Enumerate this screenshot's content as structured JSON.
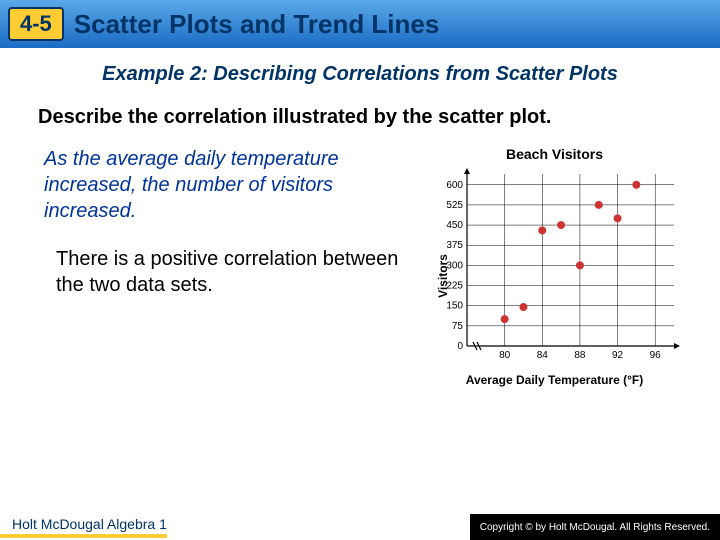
{
  "header": {
    "section": "4-5",
    "title": "Scatter Plots and Trend Lines"
  },
  "example": {
    "title": "Example 2: Describing Correlations from Scatter Plots",
    "instruction": "Describe the correlation illustrated by the scatter plot.",
    "answer": "As the average daily temperature increased, the number of visitors increased.",
    "conclusion": "There is a positive correlation between the two data sets."
  },
  "chart": {
    "type": "scatter",
    "title": "Beach Visitors",
    "ylabel": "Visitors",
    "xlabel": "Average Daily Temperature (°F)",
    "xlim": [
      76,
      98
    ],
    "ylim": [
      0,
      640
    ],
    "xticks": [
      80,
      84,
      88,
      92,
      96
    ],
    "yticks": [
      0,
      75,
      150,
      225,
      300,
      375,
      450,
      525,
      600
    ],
    "axis_break_x": true,
    "grid_color": "#000000",
    "background_color": "#ffffff",
    "marker_color": "#cc3333",
    "marker_size": 4,
    "points": [
      {
        "x": 80,
        "y": 100
      },
      {
        "x": 82,
        "y": 145
      },
      {
        "x": 84,
        "y": 430
      },
      {
        "x": 86,
        "y": 450
      },
      {
        "x": 88,
        "y": 300
      },
      {
        "x": 90,
        "y": 525
      },
      {
        "x": 92,
        "y": 475
      },
      {
        "x": 94,
        "y": 600
      }
    ]
  },
  "footer": {
    "left": "Holt McDougal Algebra 1",
    "right": "Copyright © by Holt McDougal. All Rights Reserved."
  }
}
